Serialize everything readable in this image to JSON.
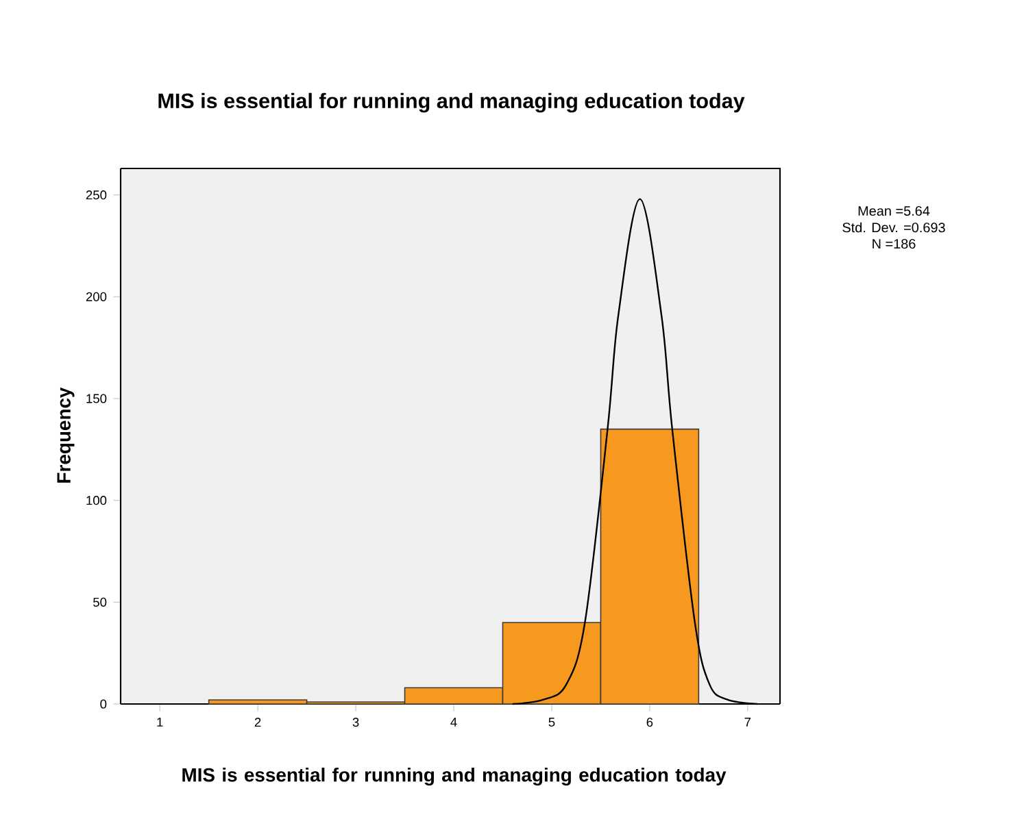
{
  "chart_data": {
    "type": "histogram",
    "title": "MIS is essential for running and managing education today",
    "xlabel": "MIS is essential for running and managing education today",
    "ylabel": "Frequency",
    "bins": [
      1.5,
      2.5,
      3.5,
      4.5,
      5.5,
      6.5
    ],
    "values": [
      2,
      1,
      8,
      40,
      135
    ],
    "color": "#f7991f",
    "series": [
      {
        "type": "line",
        "color": "#000000",
        "x": [
          4.6,
          4.92,
          5.15,
          5.34,
          5.57,
          5.68,
          5.9,
          6.12,
          6.23,
          6.46,
          6.61,
          6.79,
          7.1
        ],
        "values": [
          0,
          2.2,
          9.7,
          40.4,
          135,
          191,
          248,
          191,
          135,
          40.4,
          9.7,
          2.2,
          0
        ]
      }
    ],
    "xlim": [
      0.6,
      7.33
    ],
    "ylim": [
      0,
      263
    ],
    "xticks": [
      1,
      2,
      3,
      4,
      5,
      6,
      7
    ],
    "yticks": [
      0,
      50,
      100,
      150,
      200,
      250
    ],
    "annotations": [
      "Mean =5.64",
      "Std. Dev. =0.693",
      "N =186"
    ]
  }
}
